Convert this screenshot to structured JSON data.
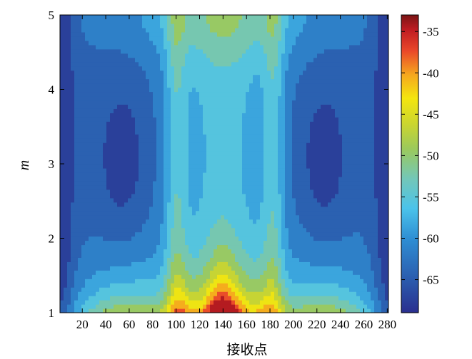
{
  "chart_data": {
    "type": "heatmap",
    "title": "",
    "xlabel": "接收点",
    "ylabel": "m",
    "xlim": [
      1,
      281
    ],
    "ylim": [
      1,
      5
    ],
    "x_ticks": [
      20,
      40,
      60,
      80,
      100,
      120,
      140,
      160,
      180,
      200,
      220,
      240,
      260,
      280
    ],
    "y_ticks": [
      1,
      2,
      3,
      4,
      5
    ],
    "colorbar": {
      "range": [
        -69,
        -33
      ],
      "ticks": [
        -35,
        -40,
        -45,
        -50,
        -55,
        -60,
        -65
      ],
      "colormap": "jet",
      "placement": "right"
    },
    "contour_lines": true,
    "description_values": {
      "max_level_near": {
        "x": 140,
        "m": 1.0,
        "value": -34
      },
      "min_level_regions": [
        {
          "x": 55,
          "m": 3.0,
          "value": -65
        },
        {
          "x": 225,
          "m": 3.0,
          "value": -65
        }
      ]
    }
  }
}
